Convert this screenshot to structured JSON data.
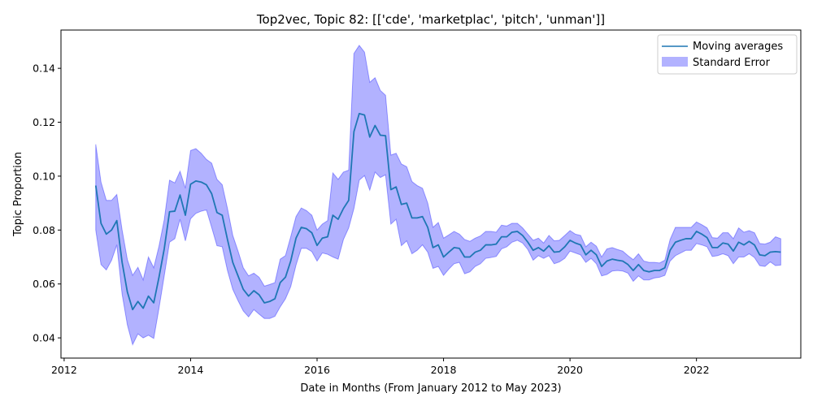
{
  "chart_data": {
    "type": "line",
    "title": "Top2vec, Topic 82: [['cde', 'marketplac', 'pitch', 'unman']]",
    "xlabel": "Date in Months (From January 2012 to May 2023)",
    "ylabel": "Topic Proportion",
    "xlim": [
      2011.95,
      2023.65
    ],
    "ylim": [
      0.0325,
      0.1542
    ],
    "x_ticks": [
      2012,
      2014,
      2016,
      2018,
      2020,
      2022
    ],
    "y_ticks": [
      "0.04",
      "0.06",
      "0.08",
      "0.10",
      "0.12",
      "0.14"
    ],
    "grid": false,
    "legend_position": "top-right",
    "colors": {
      "line": "#1f77b4",
      "band": "#0000ff",
      "band_opacity": 0.3
    },
    "series": [
      {
        "name": "Moving averages",
        "x": [
          2012.5,
          2012.583,
          2012.667,
          2012.75,
          2012.833,
          2012.917,
          2013.0,
          2013.083,
          2013.167,
          2013.25,
          2013.333,
          2013.417,
          2013.5,
          2013.583,
          2013.667,
          2013.75,
          2013.833,
          2013.917,
          2014.0,
          2014.083,
          2014.167,
          2014.25,
          2014.333,
          2014.417,
          2014.5,
          2014.583,
          2014.667,
          2014.75,
          2014.833,
          2014.917,
          2015.0,
          2015.083,
          2015.167,
          2015.25,
          2015.333,
          2015.417,
          2015.5,
          2015.583,
          2015.667,
          2015.75,
          2015.833,
          2015.917,
          2016.0,
          2016.083,
          2016.167,
          2016.25,
          2016.333,
          2016.417,
          2016.5,
          2016.583,
          2016.667,
          2016.75,
          2016.833,
          2016.917,
          2017.0,
          2017.083,
          2017.167,
          2017.25,
          2017.333,
          2017.417,
          2017.5,
          2017.583,
          2017.667,
          2017.75,
          2017.833,
          2017.917,
          2018.0,
          2018.083,
          2018.167,
          2018.25,
          2018.333,
          2018.417,
          2018.5,
          2018.583,
          2018.667,
          2018.75,
          2018.833,
          2018.917,
          2019.0,
          2019.083,
          2019.167,
          2019.25,
          2019.333,
          2019.417,
          2019.5,
          2019.583,
          2019.667,
          2019.75,
          2019.833,
          2019.917,
          2020.0,
          2020.083,
          2020.167,
          2020.25,
          2020.333,
          2020.417,
          2020.5,
          2020.583,
          2020.667,
          2020.75,
          2020.833,
          2020.917,
          2021.0,
          2021.083,
          2021.167,
          2021.25,
          2021.333,
          2021.417,
          2021.5,
          2021.583,
          2021.667,
          2021.75,
          2021.833,
          2021.917,
          2022.0,
          2022.083,
          2022.167,
          2022.25,
          2022.333,
          2022.417,
          2022.5,
          2022.583,
          2022.667,
          2022.75,
          2022.833,
          2022.917,
          2023.0,
          2023.083,
          2023.167,
          2023.25,
          2023.333
        ],
        "y": [
          0.0965,
          0.0825,
          0.0785,
          0.08,
          0.0835,
          0.068,
          0.057,
          0.0505,
          0.0535,
          0.051,
          0.0555,
          0.053,
          0.0625,
          0.073,
          0.0868,
          0.087,
          0.093,
          0.0855,
          0.097,
          0.0982,
          0.0978,
          0.0968,
          0.0935,
          0.0865,
          0.0855,
          0.0765,
          0.068,
          0.063,
          0.058,
          0.0555,
          0.0575,
          0.056,
          0.053,
          0.0535,
          0.0545,
          0.0605,
          0.0625,
          0.0685,
          0.077,
          0.081,
          0.0805,
          0.079,
          0.0743,
          0.077,
          0.0775,
          0.0855,
          0.084,
          0.088,
          0.091,
          0.1165,
          0.1232,
          0.1227,
          0.1145,
          0.1188,
          0.1152,
          0.115,
          0.095,
          0.096,
          0.0895,
          0.09,
          0.0845,
          0.0845,
          0.085,
          0.081,
          0.0735,
          0.0745,
          0.07,
          0.0718,
          0.0735,
          0.0732,
          0.07,
          0.07,
          0.0718,
          0.0725,
          0.0745,
          0.0745,
          0.0748,
          0.0775,
          0.0775,
          0.0792,
          0.0795,
          0.078,
          0.0755,
          0.0725,
          0.0735,
          0.0722,
          0.0742,
          0.0718,
          0.072,
          0.0738,
          0.0762,
          0.0752,
          0.0745,
          0.0708,
          0.0725,
          0.0708,
          0.0665,
          0.0685,
          0.0692,
          0.0688,
          0.0685,
          0.0672,
          0.065,
          0.0672,
          0.065,
          0.0645,
          0.065,
          0.065,
          0.066,
          0.0725,
          0.0755,
          0.0762,
          0.0768,
          0.0768,
          0.0795,
          0.0785,
          0.0772,
          0.0735,
          0.0735,
          0.0752,
          0.0748,
          0.0722,
          0.0755,
          0.0745,
          0.0758,
          0.0745,
          0.0708,
          0.0705,
          0.0718,
          0.072,
          0.0718
        ],
        "standard_error_lower": [
          0.08,
          0.0672,
          0.0652,
          0.0688,
          0.0745,
          0.0562,
          0.0448,
          0.0375,
          0.0415,
          0.04,
          0.041,
          0.0398,
          0.051,
          0.063,
          0.0755,
          0.0768,
          0.084,
          0.076,
          0.0842,
          0.0862,
          0.087,
          0.0875,
          0.081,
          0.0742,
          0.0738,
          0.065,
          0.058,
          0.0538,
          0.05,
          0.0478,
          0.0505,
          0.0488,
          0.0472,
          0.0472,
          0.048,
          0.0515,
          0.0545,
          0.059,
          0.067,
          0.0732,
          0.0732,
          0.072,
          0.0685,
          0.0715,
          0.071,
          0.07,
          0.0692,
          0.0765,
          0.0808,
          0.088,
          0.0985,
          0.1002,
          0.0948,
          0.1015,
          0.0995,
          0.1005,
          0.0822,
          0.084,
          0.0742,
          0.076,
          0.0712,
          0.0725,
          0.0745,
          0.0718,
          0.0658,
          0.0665,
          0.0632,
          0.0655,
          0.0675,
          0.068,
          0.0638,
          0.0645,
          0.0665,
          0.0675,
          0.0695,
          0.0698,
          0.0702,
          0.073,
          0.0738,
          0.0755,
          0.0762,
          0.0752,
          0.0728,
          0.0688,
          0.0705,
          0.0695,
          0.0705,
          0.0675,
          0.0682,
          0.0695,
          0.0722,
          0.0715,
          0.0708,
          0.068,
          0.0695,
          0.0675,
          0.063,
          0.0635,
          0.0648,
          0.065,
          0.0648,
          0.064,
          0.061,
          0.063,
          0.0615,
          0.0615,
          0.0622,
          0.0625,
          0.0632,
          0.0685,
          0.0705,
          0.0715,
          0.0725,
          0.0725,
          0.075,
          0.0745,
          0.0738,
          0.0702,
          0.0705,
          0.0712,
          0.0705,
          0.0675,
          0.07,
          0.07,
          0.0712,
          0.0698,
          0.0668,
          0.0665,
          0.0682,
          0.0668,
          0.067
        ],
        "standard_error_upper": [
          0.1118,
          0.0978,
          0.091,
          0.091,
          0.0932,
          0.08,
          0.069,
          0.0632,
          0.0662,
          0.0615,
          0.07,
          0.066,
          0.074,
          0.0838,
          0.0985,
          0.0975,
          0.1018,
          0.0955,
          0.1095,
          0.1102,
          0.1085,
          0.1062,
          0.1048,
          0.0988,
          0.0968,
          0.088,
          0.078,
          0.0722,
          0.066,
          0.063,
          0.064,
          0.0625,
          0.0592,
          0.0598,
          0.0605,
          0.0692,
          0.0705,
          0.0775,
          0.085,
          0.0882,
          0.0872,
          0.0855,
          0.08,
          0.0822,
          0.0835,
          0.1012,
          0.0988,
          0.1015,
          0.1022,
          0.1455,
          0.1485,
          0.146,
          0.1348,
          0.1365,
          0.1318,
          0.13,
          0.1078,
          0.1085,
          0.1045,
          0.1035,
          0.098,
          0.0965,
          0.0955,
          0.09,
          0.081,
          0.0828,
          0.077,
          0.0782,
          0.0795,
          0.0785,
          0.0765,
          0.0758,
          0.077,
          0.0778,
          0.0795,
          0.0795,
          0.0792,
          0.0818,
          0.0815,
          0.0825,
          0.0825,
          0.0808,
          0.0785,
          0.0762,
          0.077,
          0.0752,
          0.078,
          0.076,
          0.0762,
          0.078,
          0.0798,
          0.0785,
          0.078,
          0.0738,
          0.0755,
          0.074,
          0.07,
          0.073,
          0.0735,
          0.0728,
          0.0722,
          0.0705,
          0.069,
          0.0712,
          0.0685,
          0.068,
          0.068,
          0.0678,
          0.0688,
          0.0765,
          0.081,
          0.081,
          0.081,
          0.081,
          0.083,
          0.082,
          0.0808,
          0.0772,
          0.077,
          0.079,
          0.079,
          0.0768,
          0.0808,
          0.0792,
          0.0798,
          0.079,
          0.075,
          0.0748,
          0.0755,
          0.0775,
          0.0768
        ]
      }
    ],
    "legend": [
      {
        "label": "Moving averages",
        "kind": "line"
      },
      {
        "label": "Standard Error",
        "kind": "band"
      }
    ]
  }
}
